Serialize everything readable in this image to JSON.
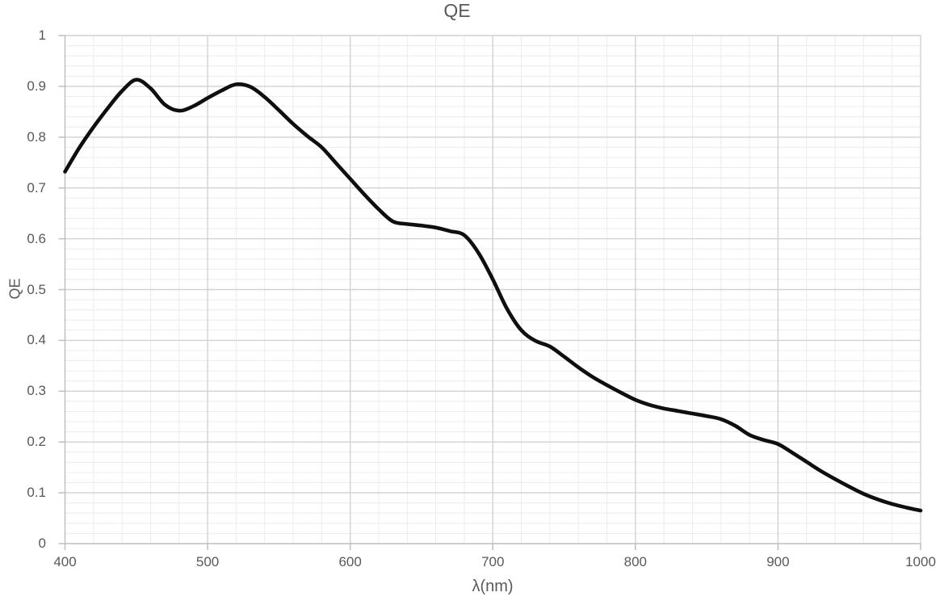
{
  "title": "QE",
  "colors": {
    "background": "#ffffff",
    "title_text": "#595959",
    "tick_text": "#595959",
    "axis_line": "#bfbfbf",
    "tick_mark": "#bfbfbf",
    "major_grid": "#d2d2d2",
    "minor_grid": "#ececec",
    "series_line": "#0f0f0f"
  },
  "chart_data": {
    "type": "line",
    "title": "QE",
    "xlabel": "λ(nm)",
    "ylabel": "QE",
    "xlim": [
      400,
      1000
    ],
    "ylim": [
      0,
      1
    ],
    "x_major_ticks": [
      400,
      500,
      600,
      700,
      800,
      900,
      1000
    ],
    "x_tick_labels": [
      "400",
      "500",
      "600",
      "700",
      "800",
      "900",
      "1000"
    ],
    "y_major_ticks": [
      0,
      0.1,
      0.2,
      0.3,
      0.4,
      0.5,
      0.6,
      0.7,
      0.8,
      0.9,
      1
    ],
    "y_tick_labels": [
      "0",
      "0.1",
      "0.2",
      "0.3",
      "0.4",
      "0.5",
      "0.6",
      "0.7",
      "0.8",
      "0.9",
      "1"
    ],
    "x_minor_step": 20,
    "y_minor_step": 0.02,
    "grid": "major+minor",
    "legend": "none",
    "line_style": "smooth",
    "line_width": 4.6,
    "series": [
      {
        "name": "QE",
        "x": [
          400,
          410,
          420,
          430,
          440,
          450,
          460,
          470,
          480,
          490,
          500,
          510,
          520,
          530,
          540,
          550,
          560,
          570,
          580,
          590,
          600,
          610,
          620,
          630,
          640,
          650,
          660,
          670,
          680,
          690,
          700,
          710,
          720,
          730,
          740,
          750,
          760,
          770,
          780,
          790,
          800,
          810,
          820,
          830,
          840,
          850,
          860,
          870,
          880,
          890,
          900,
          910,
          920,
          930,
          940,
          950,
          960,
          970,
          980,
          990,
          1000
        ],
        "y": [
          0.732,
          0.779,
          0.82,
          0.857,
          0.891,
          0.913,
          0.896,
          0.864,
          0.852,
          0.861,
          0.877,
          0.892,
          0.904,
          0.899,
          0.879,
          0.853,
          0.826,
          0.802,
          0.78,
          0.749,
          0.718,
          0.687,
          0.658,
          0.634,
          0.629,
          0.626,
          0.622,
          0.615,
          0.607,
          0.572,
          0.52,
          0.462,
          0.42,
          0.399,
          0.388,
          0.368,
          0.347,
          0.328,
          0.312,
          0.297,
          0.283,
          0.273,
          0.266,
          0.261,
          0.256,
          0.251,
          0.245,
          0.232,
          0.214,
          0.204,
          0.196,
          0.179,
          0.161,
          0.143,
          0.127,
          0.112,
          0.098,
          0.087,
          0.078,
          0.071,
          0.065
        ]
      }
    ]
  }
}
